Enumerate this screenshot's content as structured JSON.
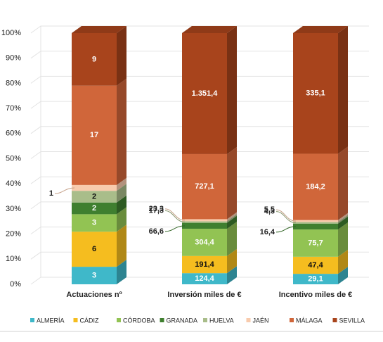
{
  "chart_data": {
    "type": "stacked-bar-100",
    "categories": [
      "Actuaciones nº",
      "Inversión miles de €",
      "Incentivo miles de €"
    ],
    "ylim": [
      0,
      100
    ],
    "yticks": [
      {
        "value": 0,
        "label": "0%"
      },
      {
        "value": 10,
        "label": "10%"
      },
      {
        "value": 20,
        "label": "20%"
      },
      {
        "value": 30,
        "label": "30%"
      },
      {
        "value": 40,
        "label": "40%"
      },
      {
        "value": 50,
        "label": "50%"
      },
      {
        "value": 60,
        "label": "60%"
      },
      {
        "value": 70,
        "label": "70%"
      },
      {
        "value": 80,
        "label": "80%"
      },
      {
        "value": 90,
        "label": "90%"
      },
      {
        "value": 100,
        "label": "100%"
      }
    ],
    "grid": true,
    "legend": "bottom",
    "series": [
      {
        "name": "ALMERÍA",
        "color": "#3fb8c9",
        "values": [
          3,
          124.4,
          29.1
        ],
        "value_labels": [
          "3",
          "124,4",
          "29,1"
        ]
      },
      {
        "name": "CÁDIZ",
        "color": "#f5bd1f",
        "values": [
          6,
          191.4,
          47.4
        ],
        "value_labels": [
          "6",
          "191,4",
          "47,4"
        ]
      },
      {
        "name": "CÓRDOBA",
        "color": "#92c353",
        "values": [
          3,
          304.4,
          75.7
        ],
        "value_labels": [
          "3",
          "304,4",
          "75,7"
        ]
      },
      {
        "name": "GRANADA",
        "color": "#3f7f2f",
        "values": [
          2,
          66.6,
          16.4
        ],
        "value_labels": [
          "2",
          "66,6",
          "16,4"
        ]
      },
      {
        "name": "HUELVA",
        "color": "#a9bd8a",
        "values": [
          2,
          17.3,
          4.3
        ],
        "value_labels": [
          "2",
          "17,3",
          "4,3"
        ]
      },
      {
        "name": "JAÉN",
        "color": "#f8cbad",
        "values": [
          1,
          23.3,
          5.5
        ],
        "value_labels": [
          "1",
          "23,3",
          "5,5"
        ]
      },
      {
        "name": "MÁLAGA",
        "color": "#d0663a",
        "values": [
          17,
          727.1,
          184.2
        ],
        "value_labels": [
          "17",
          "727,1",
          "184,2"
        ]
      },
      {
        "name": "SEVILLA",
        "color": "#a8441c",
        "values": [
          9,
          1351.4,
          335.1
        ],
        "value_labels": [
          "9",
          "1.351,4",
          "335,1"
        ]
      }
    ]
  }
}
